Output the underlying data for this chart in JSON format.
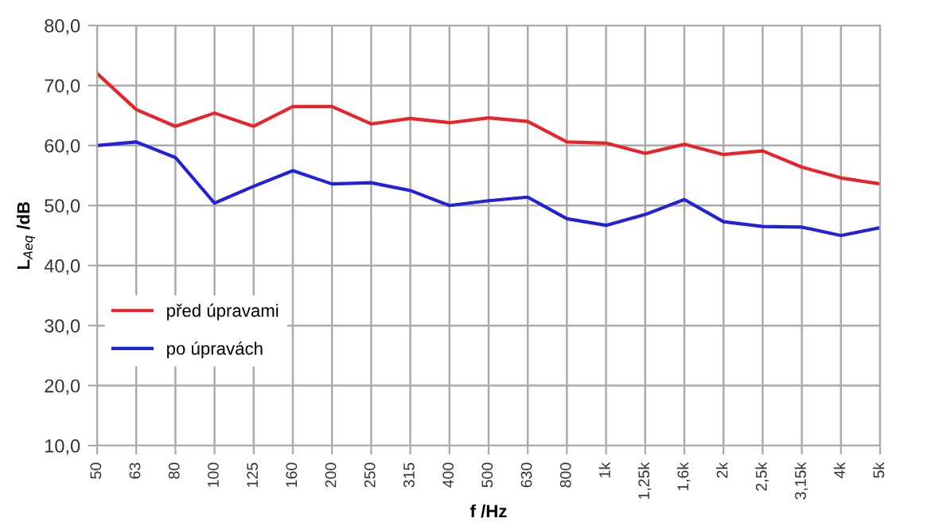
{
  "chart_data": {
    "type": "line",
    "xlabel": "f /Hz",
    "ylabel": "L$_{Aeq}$ /dB",
    "categories": [
      "50",
      "63",
      "80",
      "100",
      "125",
      "160",
      "200",
      "250",
      "315",
      "400",
      "500",
      "630",
      "800",
      "1k",
      "1,25k",
      "1,6k",
      "2k",
      "2,5k",
      "3,15k",
      "4k",
      "5k"
    ],
    "series": [
      {
        "name": "před úpravami",
        "color": "#e8242a",
        "values": [
          72.0,
          66.0,
          63.2,
          65.4,
          63.2,
          66.5,
          66.5,
          63.6,
          64.5,
          63.8,
          64.6,
          64.0,
          60.6,
          60.4,
          58.7,
          60.2,
          58.5,
          59.1,
          56.4,
          54.6,
          53.6
        ]
      },
      {
        "name": "po úpravách",
        "color": "#2222d8",
        "values": [
          60.0,
          60.6,
          58.0,
          50.4,
          53.2,
          55.8,
          53.6,
          53.8,
          52.5,
          50.0,
          50.8,
          51.4,
          47.8,
          46.7,
          48.5,
          51.0,
          47.3,
          46.5,
          46.4,
          45.0,
          46.3
        ]
      }
    ],
    "ylim": [
      10,
      80
    ],
    "yticks": [
      {
        "value": 10,
        "label": "10,0"
      },
      {
        "value": 20,
        "label": "20,0"
      },
      {
        "value": 30,
        "label": "30,0"
      },
      {
        "value": 40,
        "label": "40,0"
      },
      {
        "value": 50,
        "label": "50,0"
      },
      {
        "value": 60,
        "label": "60,0"
      },
      {
        "value": 70,
        "label": "70,0"
      },
      {
        "value": 80,
        "label": "80,0"
      }
    ],
    "grid": true,
    "legend": "bottom left",
    "marker": "none",
    "line_style": "solid"
  }
}
